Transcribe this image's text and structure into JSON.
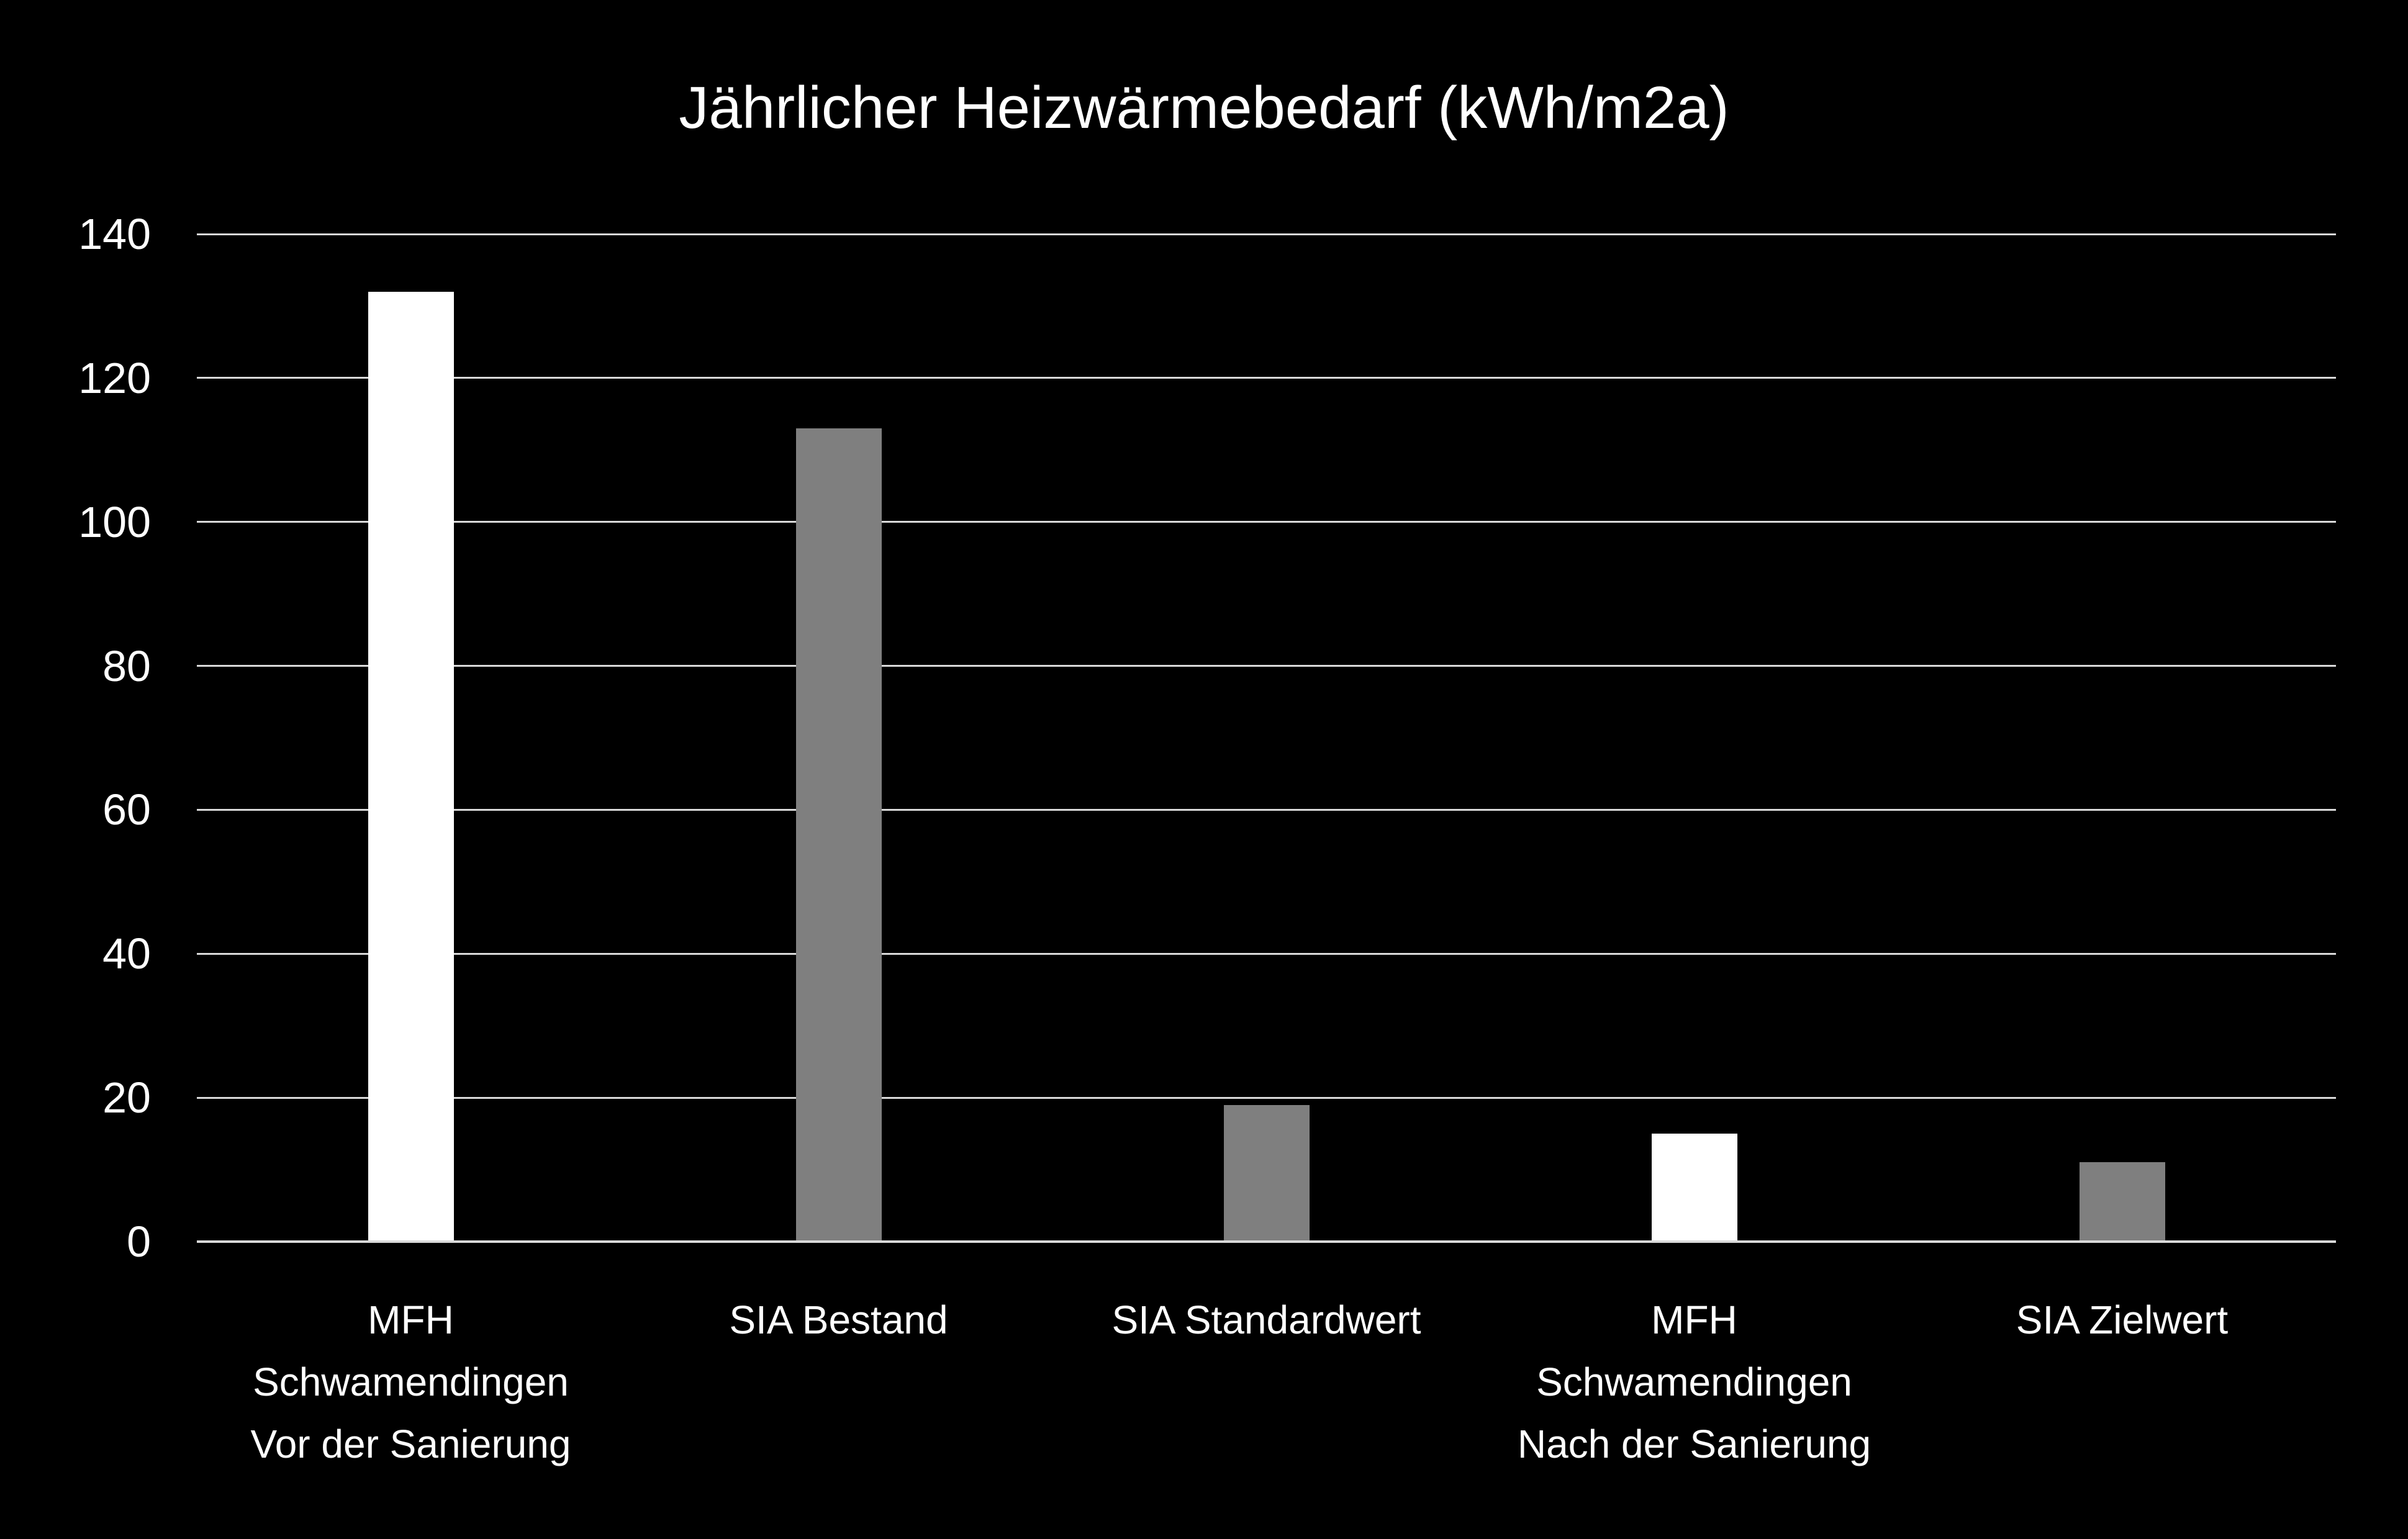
{
  "chart_data": {
    "type": "bar",
    "title": "Jährlicher Heizwärmebedarf (kWh/m2a)",
    "categories": [
      "MFH Schwamendingen Vor der Sanierung",
      "SIA Bestand",
      "SIA Standardwert",
      "MFH Schwamendingen Nach der Sanierung",
      "SIA Zielwert"
    ],
    "category_label_lines": [
      [
        "MFH",
        "Schwamendingen",
        "Vor der Sanierung"
      ],
      [
        "SIA Bestand"
      ],
      [
        "SIA Standardwert"
      ],
      [
        "MFH",
        "Schwamendingen",
        "Nach der Sanierung"
      ],
      [
        "SIA Zielwert"
      ]
    ],
    "values": [
      132,
      113,
      19,
      15,
      11
    ],
    "bar_colors": [
      "#ffffff",
      "#7f7f7f",
      "#7f7f7f",
      "#ffffff",
      "#7f7f7f"
    ],
    "xlabel": "",
    "ylabel": "",
    "ylim": [
      0,
      140
    ],
    "yticks": [
      0,
      20,
      40,
      60,
      80,
      100,
      120,
      140
    ],
    "grid": "horizontal",
    "legend": "none",
    "colors": {
      "background": "#000000",
      "text": "#ffffff",
      "gridline": "#d9d9d9",
      "axis_line": "#d9d9d9",
      "bar_highlight": "#ffffff",
      "bar_reference": "#7f7f7f"
    }
  }
}
